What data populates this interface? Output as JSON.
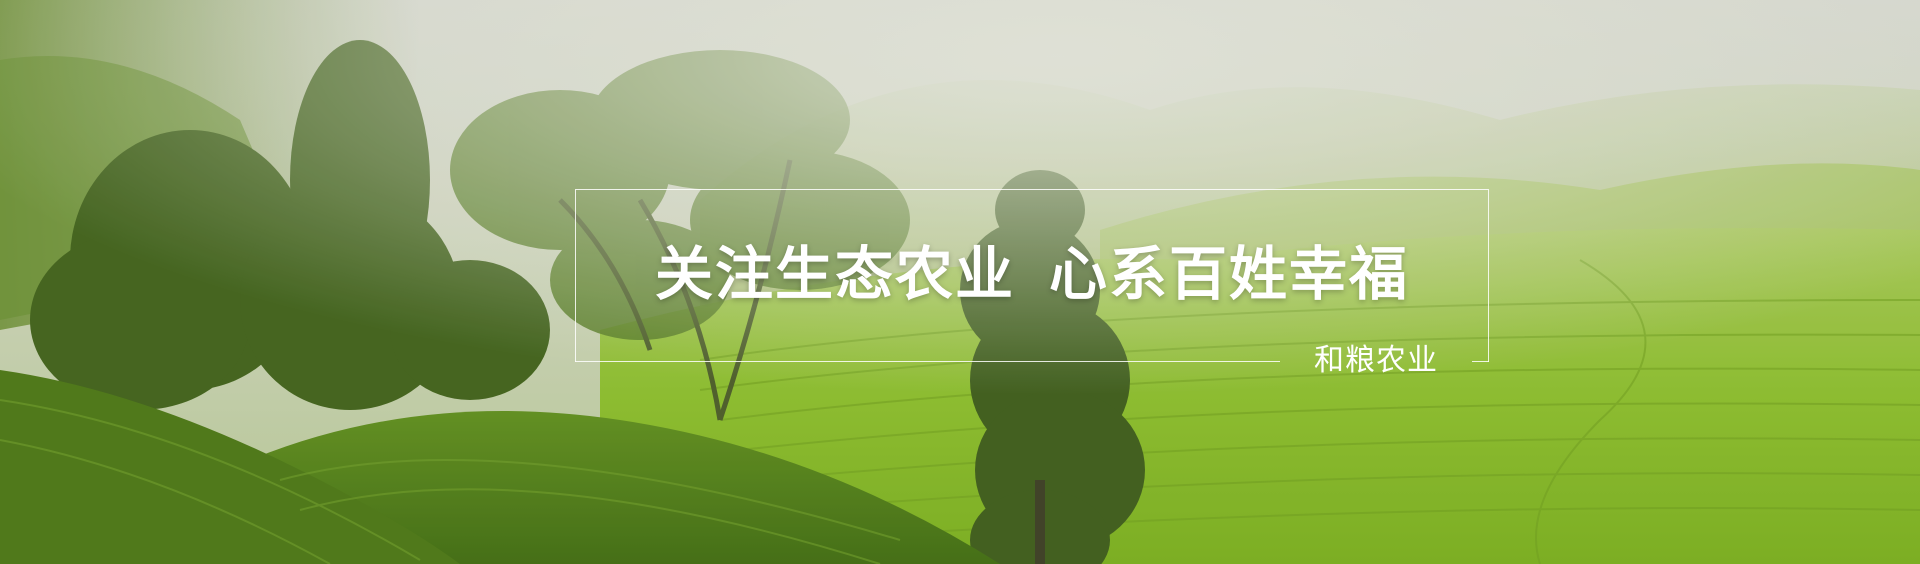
{
  "banner": {
    "slogan_part1": "关注生态农业",
    "slogan_part2": "心系百姓幸福",
    "brand": "和粮农业",
    "colors": {
      "text": "#ffffff",
      "frame": "#ffffff",
      "field": "#8fbf2c",
      "mist": "#d8dad4",
      "tree": "#3c5a1c"
    }
  }
}
